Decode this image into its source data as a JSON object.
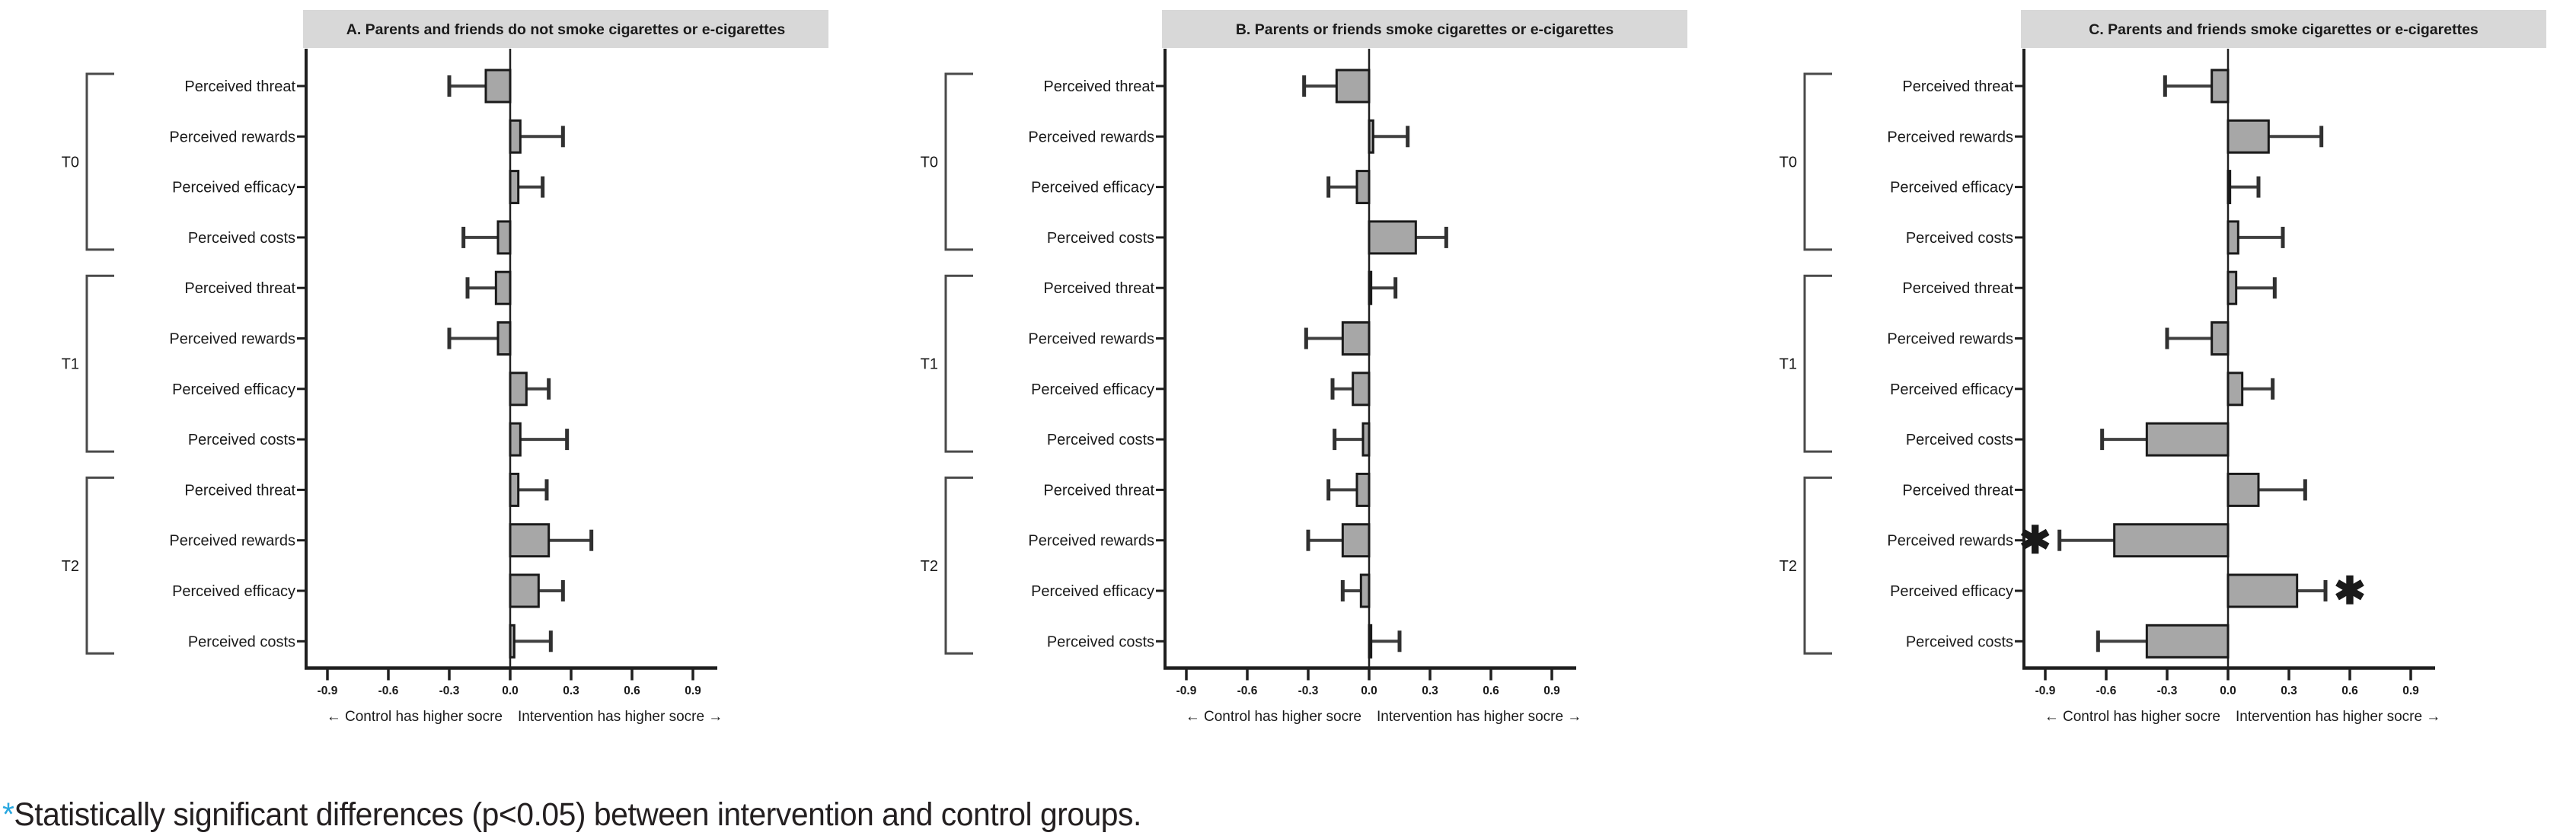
{
  "figure": {
    "footnote_marker": "*",
    "footnote_text": "Statistically significant differences (p<0.05) between intervention and control groups.",
    "star_glyph": "✱",
    "colors": {
      "bar_fill": "#a7a7a7",
      "bar_stroke": "#1a1a1a",
      "title_bg": "#d8d8d8",
      "whisker": "#404040",
      "whisker_cap": "#303030",
      "axis": "#1f1f1f",
      "bracket": "#4a4a4a",
      "star": "#e8403a",
      "footnote_marker_color": "#29a8e0"
    }
  },
  "axis": {
    "tick_labels": [
      "-0.9",
      "-0.6",
      "-0.3",
      "0.0",
      "0.3",
      "0.6",
      "0.9"
    ],
    "tick_values": [
      -0.9,
      -0.6,
      -0.3,
      0.0,
      0.3,
      0.6,
      0.9
    ],
    "direction_left": "← Control has higher socre",
    "direction_right": "Intervention has higher socre →",
    "xlim": [
      -1.02,
      1.02
    ]
  },
  "chart_data": [
    {
      "type": "bar",
      "orientation": "horizontal",
      "title": "A. Parents and friends do not smoke cigarettes or e-cigarettes",
      "xlabel_ticks": [
        "-0.9",
        "-0.6",
        "-0.3",
        "0.0",
        "0.3",
        "0.6",
        "0.9"
      ],
      "groups": [
        {
          "label": "T0",
          "rows": [
            {
              "label": "Perceived threat",
              "value": -0.12,
              "ci": -0.3,
              "significant": false
            },
            {
              "label": "Perceived rewards",
              "value": 0.05,
              "ci": 0.26,
              "significant": false
            },
            {
              "label": "Perceived efficacy",
              "value": 0.04,
              "ci": 0.16,
              "significant": false
            },
            {
              "label": "Perceived costs",
              "value": -0.06,
              "ci": -0.23,
              "significant": false
            }
          ]
        },
        {
          "label": "T1",
          "rows": [
            {
              "label": "Perceived threat",
              "value": -0.07,
              "ci": -0.21,
              "significant": false
            },
            {
              "label": "Perceived rewards",
              "value": -0.06,
              "ci": -0.3,
              "significant": false
            },
            {
              "label": "Perceived efficacy",
              "value": 0.08,
              "ci": 0.19,
              "significant": false
            },
            {
              "label": "Perceived costs",
              "value": 0.05,
              "ci": 0.28,
              "significant": false
            }
          ]
        },
        {
          "label": "T2",
          "rows": [
            {
              "label": "Perceived threat",
              "value": 0.04,
              "ci": 0.18,
              "significant": false
            },
            {
              "label": "Perceived rewards",
              "value": 0.19,
              "ci": 0.4,
              "significant": false
            },
            {
              "label": "Perceived efficacy",
              "value": 0.14,
              "ci": 0.26,
              "significant": false
            },
            {
              "label": "Perceived costs",
              "value": 0.02,
              "ci": 0.2,
              "significant": false
            }
          ]
        }
      ]
    },
    {
      "type": "bar",
      "orientation": "horizontal",
      "title": "B. Parents or friends smoke cigarettes or e-cigarettes",
      "xlabel_ticks": [
        "-0.9",
        "-0.6",
        "-0.3",
        "0.0",
        "0.3",
        "0.6",
        "0.9"
      ],
      "groups": [
        {
          "label": "T0",
          "rows": [
            {
              "label": "Perceived threat",
              "value": -0.16,
              "ci": -0.32,
              "significant": false
            },
            {
              "label": "Perceived rewards",
              "value": 0.02,
              "ci": 0.19,
              "significant": false
            },
            {
              "label": "Perceived efficacy",
              "value": -0.06,
              "ci": -0.2,
              "significant": false
            },
            {
              "label": "Perceived costs",
              "value": 0.23,
              "ci": 0.38,
              "significant": false
            }
          ]
        },
        {
          "label": "T1",
          "rows": [
            {
              "label": "Perceived threat",
              "value": 0.01,
              "ci": 0.13,
              "significant": false
            },
            {
              "label": "Perceived rewards",
              "value": -0.13,
              "ci": -0.31,
              "significant": false
            },
            {
              "label": "Perceived efficacy",
              "value": -0.08,
              "ci": -0.18,
              "significant": false
            },
            {
              "label": "Perceived costs",
              "value": -0.03,
              "ci": -0.17,
              "significant": false
            }
          ]
        },
        {
          "label": "T2",
          "rows": [
            {
              "label": "Perceived threat",
              "value": -0.06,
              "ci": -0.2,
              "significant": false
            },
            {
              "label": "Perceived rewards",
              "value": -0.13,
              "ci": -0.3,
              "significant": false
            },
            {
              "label": "Perceived efficacy",
              "value": -0.04,
              "ci": -0.13,
              "significant": false
            },
            {
              "label": "Perceived costs",
              "value": 0.01,
              "ci": 0.15,
              "significant": false
            }
          ]
        }
      ]
    },
    {
      "type": "bar",
      "orientation": "horizontal",
      "title": "C. Parents and friends smoke cigarettes or e-cigarettes",
      "xlabel_ticks": [
        "-0.9",
        "-0.6",
        "-0.3",
        "0.0",
        "0.3",
        "0.6",
        "0.9"
      ],
      "groups": [
        {
          "label": "T0",
          "rows": [
            {
              "label": "Perceived threat",
              "value": -0.08,
              "ci": -0.31,
              "significant": false
            },
            {
              "label": "Perceived rewards",
              "value": 0.2,
              "ci": 0.46,
              "significant": false
            },
            {
              "label": "Perceived efficacy",
              "value": 0.01,
              "ci": 0.15,
              "significant": false
            },
            {
              "label": "Perceived costs",
              "value": 0.05,
              "ci": 0.27,
              "significant": false
            }
          ]
        },
        {
          "label": "T1",
          "rows": [
            {
              "label": "Perceived threat",
              "value": 0.04,
              "ci": 0.23,
              "significant": false
            },
            {
              "label": "Perceived rewards",
              "value": -0.08,
              "ci": -0.3,
              "significant": false
            },
            {
              "label": "Perceived efficacy",
              "value": 0.07,
              "ci": 0.22,
              "significant": false
            },
            {
              "label": "Perceived costs",
              "value": -0.4,
              "ci": -0.62,
              "significant": false
            }
          ]
        },
        {
          "label": "T2",
          "rows": [
            {
              "label": "Perceived threat",
              "value": 0.15,
              "ci": 0.38,
              "significant": false
            },
            {
              "label": "Perceived rewards",
              "value": -0.56,
              "ci": -0.83,
              "significant": true
            },
            {
              "label": "Perceived efficacy",
              "value": 0.34,
              "ci": 0.48,
              "significant": true
            },
            {
              "label": "Perceived costs",
              "value": -0.4,
              "ci": -0.64,
              "significant": false
            }
          ]
        }
      ]
    }
  ]
}
